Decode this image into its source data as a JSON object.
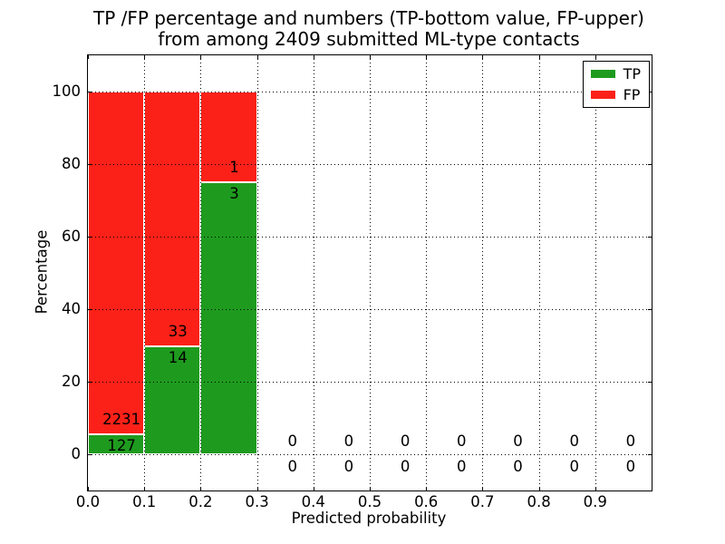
{
  "figure": {
    "title_line1": "TP /FP percentage and numbers (TP-bottom value, FP-upper)",
    "title_line2": "from among 2409 submitted ML-type contacts"
  },
  "axes": {
    "xlabel": "Predicted probability",
    "ylabel": "Percentage"
  },
  "legend": {
    "position": "upper right",
    "items": [
      {
        "label": "TP",
        "color": "#1e9b1e"
      },
      {
        "label": "FP",
        "color": "#fb2118"
      }
    ]
  },
  "chart_data": {
    "type": "bar",
    "stacked": true,
    "title": "TP /FP percentage and numbers (TP-bottom value, FP-upper) from among 2409 submitted ML-type contacts",
    "xlabel": "Predicted probability",
    "ylabel": "Percentage",
    "total_contacts": 2409,
    "bin_width": 0.1,
    "bin_starts": [
      0.0,
      0.1,
      0.2,
      0.3,
      0.4,
      0.5,
      0.6,
      0.7,
      0.8,
      0.9
    ],
    "series": [
      {
        "name": "TP",
        "color": "#1e9b1e",
        "counts": [
          127,
          14,
          3,
          0,
          0,
          0,
          0,
          0,
          0,
          0
        ]
      },
      {
        "name": "FP",
        "color": "#fb2118",
        "counts": [
          2231,
          33,
          1,
          0,
          0,
          0,
          0,
          0,
          0,
          0
        ]
      }
    ],
    "bar_heights_percent": {
      "TP": [
        5.39,
        29.79,
        75.0,
        0,
        0,
        0,
        0,
        0,
        0,
        0
      ],
      "FP": [
        94.61,
        70.21,
        25.0,
        0,
        0,
        0,
        0,
        0,
        0,
        0
      ]
    },
    "x_tick_labels": [
      "0.0",
      "0.1",
      "0.2",
      "0.3",
      "0.4",
      "0.5",
      "0.6",
      "0.7",
      "0.8",
      "0.9"
    ],
    "y_ticks": [
      0,
      20,
      40,
      60,
      80,
      100
    ],
    "y_tick_labels": [
      "0",
      "20",
      "40",
      "60",
      "80",
      "100"
    ],
    "xlim": [
      0.0,
      1.0
    ],
    "ylim": [
      -10,
      110
    ],
    "grid": "dotted",
    "legend_position": "upper right"
  }
}
